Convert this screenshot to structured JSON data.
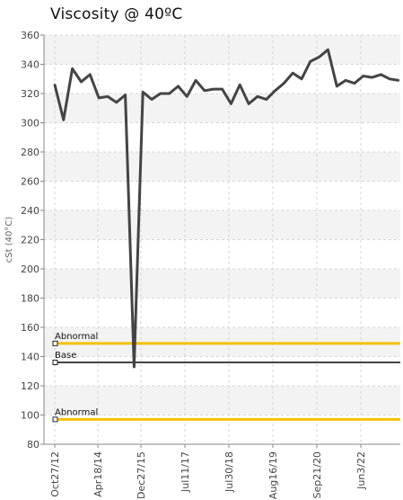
{
  "chart_data": {
    "type": "line",
    "title": "Viscosity @ 40ºC",
    "xlabel": "",
    "ylabel": "cSt (40°C)",
    "ylim": [
      80,
      360
    ],
    "y_ticks": [
      80,
      100,
      120,
      140,
      160,
      180,
      200,
      220,
      240,
      260,
      280,
      300,
      320,
      340,
      360
    ],
    "x_tick_labels": [
      "Oct27/12",
      "Apr18/14",
      "Dec27/15",
      "Jul11/17",
      "Jul30/18",
      "Aug16/19",
      "Sep21/20",
      "Jun3/22"
    ],
    "grid": true,
    "series": [
      {
        "values": [
          326,
          302,
          337,
          328,
          333,
          317,
          318,
          314,
          319,
          133,
          321,
          316,
          320,
          320,
          325,
          318,
          329,
          322,
          323,
          323,
          313,
          326,
          313,
          318,
          316,
          322,
          327,
          334,
          330,
          342,
          345,
          350,
          325,
          329,
          327,
          332,
          331,
          333,
          330,
          329
        ],
        "color": "#444444"
      }
    ],
    "reference_lines": [
      {
        "label": "Abnormal",
        "value": 149,
        "color": "#f2c200"
      },
      {
        "label": "Base",
        "value": 136,
        "color": "#444444"
      },
      {
        "label": "Abnormal",
        "value": 97,
        "color": "#f2c200"
      }
    ]
  }
}
